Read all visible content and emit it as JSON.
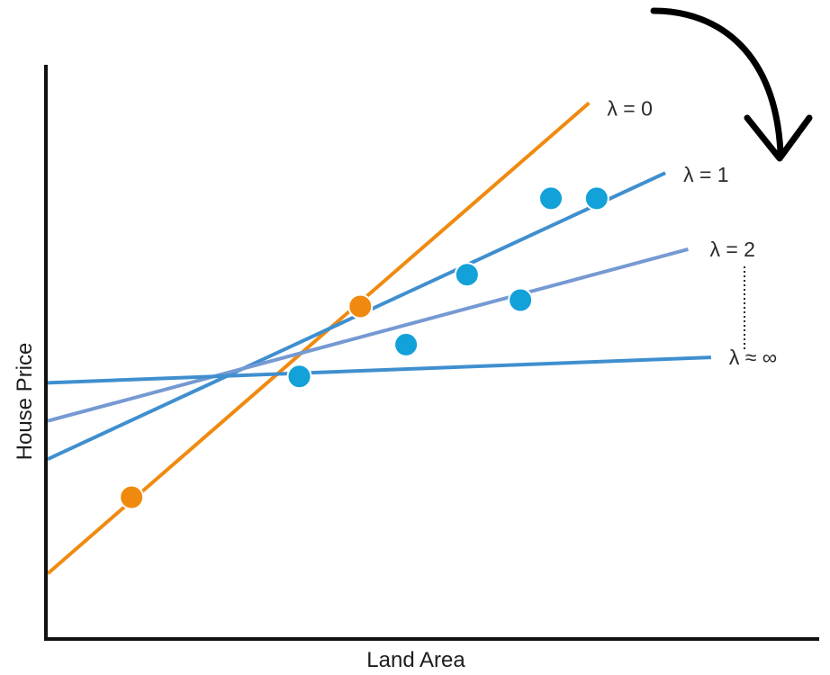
{
  "chart_data": {
    "type": "line",
    "title": "",
    "xlabel": "Land Area",
    "ylabel": "House Price",
    "grid": false,
    "legend": "none",
    "series": [
      {
        "name": "λ = 0",
        "color": "#f08a0f",
        "x": [
          0.0,
          7.1
        ],
        "y": [
          1.0,
          8.4
        ]
      },
      {
        "name": "λ = 1",
        "color": "#3f8fcf",
        "x": [
          0.0,
          8.1
        ],
        "y": [
          2.8,
          7.3
        ]
      },
      {
        "name": "λ = 2",
        "color": "#7599d2",
        "x": [
          0.0,
          8.4
        ],
        "y": [
          3.4,
          6.1
        ]
      },
      {
        "name": "λ ≈ ∞",
        "color": "#3f8fcf",
        "x": [
          0.0,
          8.7
        ],
        "y": [
          4.0,
          4.4
        ]
      }
    ],
    "points": {
      "training": {
        "color": "#f08a0f",
        "x": [
          1.1,
          4.1
        ],
        "y": [
          2.2,
          5.2
        ]
      },
      "test": {
        "color": "#12a1d9",
        "x": [
          3.3,
          4.7,
          5.5,
          6.2,
          6.6,
          7.2
        ],
        "y": [
          4.1,
          4.6,
          5.7,
          5.3,
          6.9,
          6.9
        ]
      }
    },
    "xlim": [
      0,
      10
    ],
    "ylim": [
      0,
      9
    ]
  },
  "annotations": {
    "arrow_icon": "curved-arrow-down-icon",
    "arrow_color": "#000000",
    "connector_icon": "dotted-connector"
  }
}
